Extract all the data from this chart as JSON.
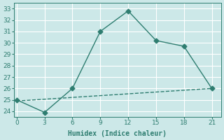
{
  "xlabel": "Humidex (Indice chaleur)",
  "x_ticks": [
    0,
    3,
    6,
    9,
    12,
    15,
    18,
    21
  ],
  "line1_x": [
    0,
    3,
    6,
    9,
    12,
    15,
    18,
    21
  ],
  "line1_y": [
    25.0,
    23.9,
    26.0,
    31.0,
    32.8,
    30.2,
    29.7,
    26.0
  ],
  "line2_x": [
    0,
    21
  ],
  "line2_y": [
    24.9,
    26.0
  ],
  "line_color": "#2e7d70",
  "bg_color": "#cce8e8",
  "grid_color": "#ffffff",
  "grid_minor_color": "#ddeaea",
  "y_min": 23.5,
  "y_max": 33.5,
  "y_ticks": [
    24,
    25,
    26,
    27,
    28,
    29,
    30,
    31,
    32,
    33
  ],
  "marker_size": 3.5,
  "linewidth": 1.0,
  "tick_fontsize": 6.5,
  "xlabel_fontsize": 7
}
